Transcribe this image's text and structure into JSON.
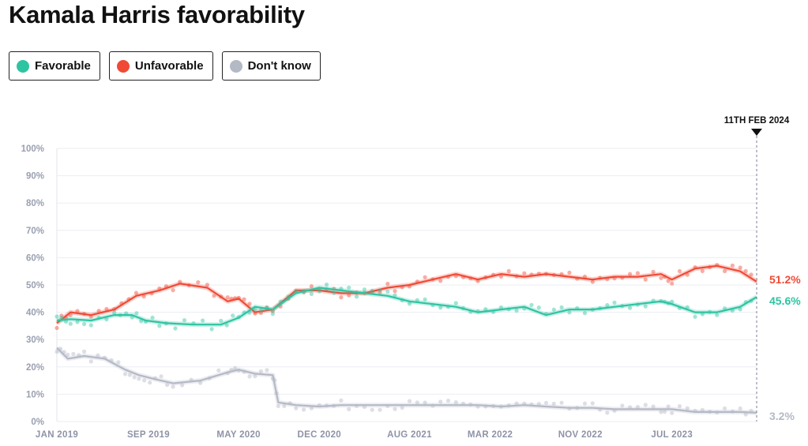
{
  "page": {
    "title": "Kamala Harris favorability"
  },
  "legend": [
    {
      "label": "Favorable",
      "color": "#2ec4a2"
    },
    {
      "label": "Unfavorable",
      "color": "#f04a36"
    },
    {
      "label": "Don't know",
      "color": "#b4b9c6"
    }
  ],
  "chart_data": {
    "type": "line",
    "title": "Kamala Harris favorability",
    "ylim": [
      0,
      100
    ],
    "yticks": [
      "0%",
      "10%",
      "20%",
      "30%",
      "40%",
      "50%",
      "60%",
      "70%",
      "80%",
      "90%",
      "100%"
    ],
    "xlim": [
      2019.0,
      2024.12
    ],
    "xticks": [
      {
        "label": "JAN 2019",
        "x": 2019.0
      },
      {
        "label": "SEP 2019",
        "x": 2019.67
      },
      {
        "label": "MAY 2020",
        "x": 2020.33
      },
      {
        "label": "DEC 2020",
        "x": 2020.92
      },
      {
        "label": "AUG 2021",
        "x": 2021.58
      },
      {
        "label": "MAR 2022",
        "x": 2022.17
      },
      {
        "label": "NOV 2022",
        "x": 2022.83
      },
      {
        "label": "JUL 2023",
        "x": 2023.5
      }
    ],
    "marker": {
      "label": "11TH FEB 2024",
      "x": 2024.12
    },
    "series": [
      {
        "name": "Unfavorable",
        "color": "#f04a36",
        "end_label": "51.2%",
        "x": [
          2019.0,
          2019.1,
          2019.25,
          2019.42,
          2019.58,
          2019.75,
          2019.9,
          2020.1,
          2020.25,
          2020.33,
          2020.45,
          2020.58,
          2020.75,
          2020.92,
          2021.08,
          2021.25,
          2021.42,
          2021.58,
          2021.75,
          2021.92,
          2022.08,
          2022.25,
          2022.42,
          2022.58,
          2022.75,
          2022.92,
          2023.08,
          2023.25,
          2023.42,
          2023.5,
          2023.67,
          2023.83,
          2024.0,
          2024.12
        ],
        "y": [
          36,
          40,
          39,
          41,
          46,
          48,
          50.5,
          49,
          44,
          45,
          40,
          41,
          48,
          48,
          47,
          47,
          49,
          50,
          52,
          54,
          52,
          54,
          53,
          54,
          53,
          52,
          53,
          53,
          54,
          52,
          56,
          57,
          55,
          51.2
        ]
      },
      {
        "name": "Favorable",
        "color": "#2ec4a2",
        "end_label": "45.6%",
        "x": [
          2019.0,
          2019.1,
          2019.25,
          2019.42,
          2019.55,
          2019.65,
          2019.8,
          2020.0,
          2020.2,
          2020.33,
          2020.45,
          2020.58,
          2020.75,
          2020.92,
          2021.08,
          2021.25,
          2021.42,
          2021.58,
          2021.75,
          2021.92,
          2022.08,
          2022.25,
          2022.42,
          2022.58,
          2022.75,
          2022.92,
          2023.08,
          2023.25,
          2023.42,
          2023.5,
          2023.67,
          2023.83,
          2024.0,
          2024.12
        ],
        "y": [
          37,
          37.5,
          37,
          39,
          39,
          37,
          36,
          35.5,
          35.5,
          38,
          42,
          41,
          47,
          49,
          48,
          47,
          46,
          44,
          43,
          42,
          40,
          41,
          42,
          39,
          41,
          41,
          42,
          43,
          44,
          43,
          40,
          40,
          42,
          45.6
        ]
      },
      {
        "name": "Don't know",
        "color": "#b4b9c6",
        "end_label": "3.2%",
        "x": [
          2019.0,
          2019.08,
          2019.2,
          2019.35,
          2019.5,
          2019.6,
          2019.72,
          2019.85,
          2020.05,
          2020.25,
          2020.33,
          2020.45,
          2020.58,
          2020.62,
          2020.75,
          2020.92,
          2021.08,
          2021.25,
          2021.42,
          2021.58,
          2021.75,
          2021.92,
          2022.08,
          2022.25,
          2022.42,
          2022.58,
          2022.75,
          2022.92,
          2023.08,
          2023.25,
          2023.42,
          2023.5,
          2023.67,
          2023.83,
          2024.0,
          2024.12
        ],
        "y": [
          27,
          23,
          24,
          23,
          19,
          17,
          15.5,
          14,
          15,
          18,
          19,
          17.5,
          17,
          7,
          6,
          5.5,
          6,
          6,
          6,
          6,
          6,
          6,
          6,
          5.5,
          6,
          5.5,
          5,
          5,
          4.5,
          4.5,
          4.5,
          4.5,
          3.5,
          3.5,
          3.5,
          3.2
        ]
      }
    ]
  }
}
